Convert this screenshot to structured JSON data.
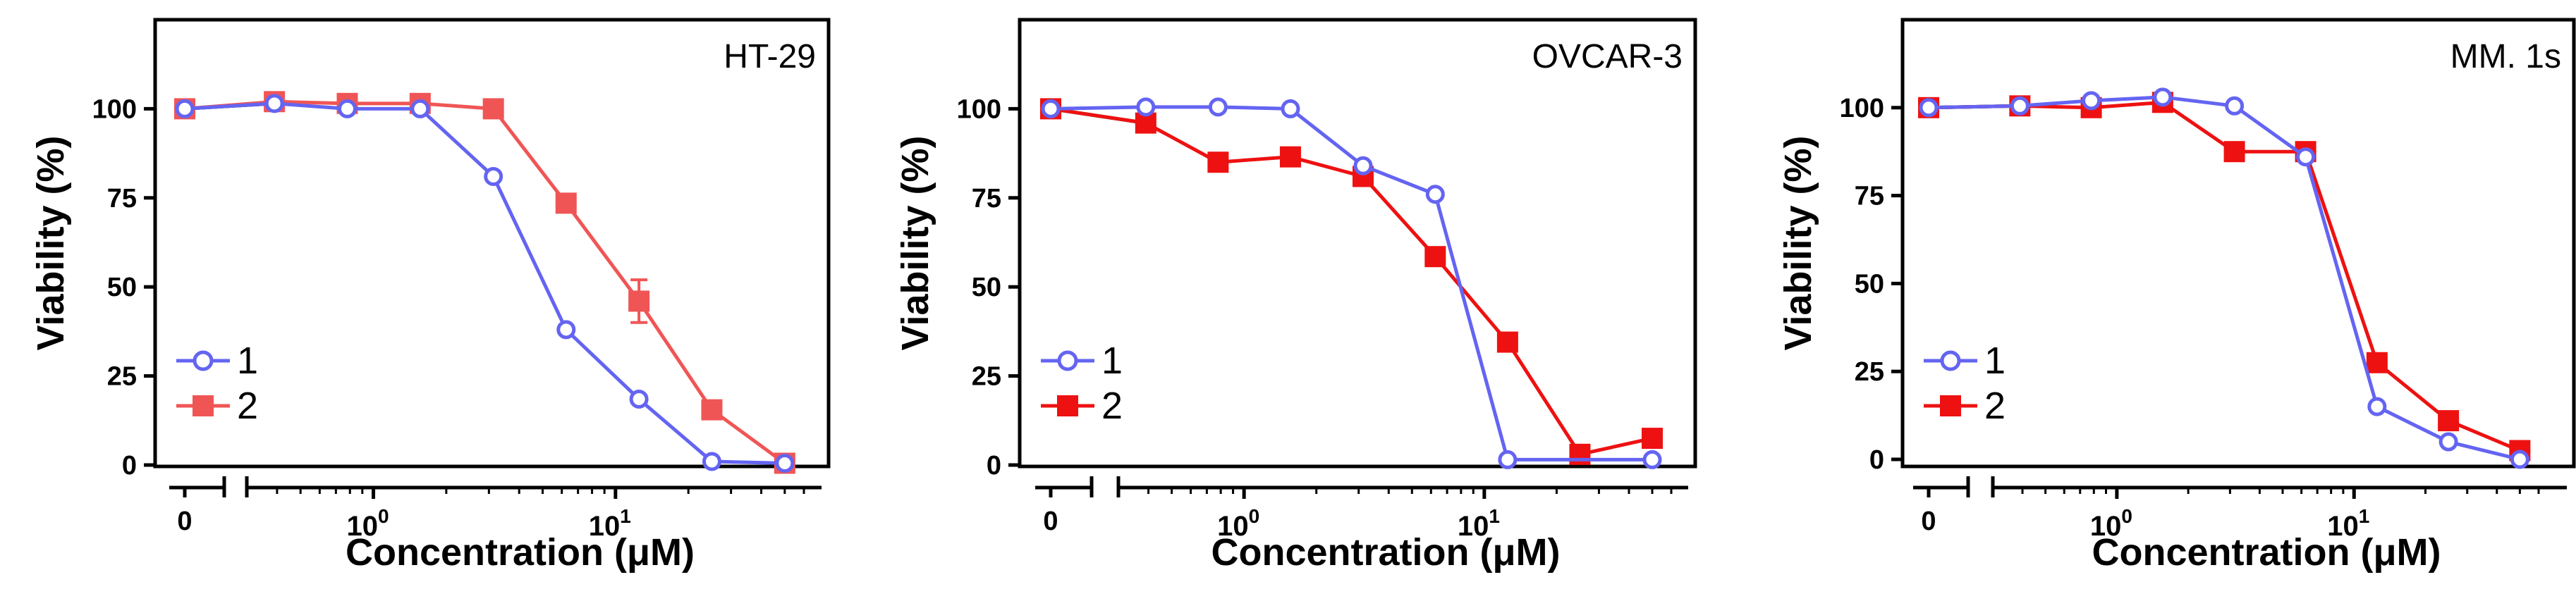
{
  "chart_data": [
    {
      "type": "line",
      "title": "HT-29",
      "xlabel": "Concentration (μM)",
      "ylabel": "Viability (%)",
      "ylim": [
        0,
        125
      ],
      "yticks": [
        0,
        25,
        50,
        75,
        100
      ],
      "xscale": "log",
      "zero_tick": "0",
      "xtick_labels": [
        {
          "value": 1,
          "base": "10",
          "exp": "0"
        },
        {
          "value": 10,
          "base": "10",
          "exp": "1"
        }
      ],
      "legend": {
        "position": "bottom-left",
        "entries": [
          "1",
          "2"
        ]
      },
      "control": {
        "from_x": 0,
        "from_y": 100,
        "to_x": 0.39,
        "to_y": 101.5
      },
      "series": [
        {
          "name": "1",
          "color": "#6464f2",
          "marker": "open-circle",
          "x": [
            0,
            0.39,
            0.78,
            1.56,
            3.13,
            6.25,
            12.5,
            25,
            50
          ],
          "y": [
            100,
            101.5,
            100,
            100,
            81,
            38,
            18.5,
            1,
            0.5
          ]
        },
        {
          "name": "2",
          "color": "#f05555",
          "marker": "filled-square",
          "x": [
            0,
            0.39,
            0.78,
            1.56,
            3.13,
            6.25,
            12.5,
            25,
            50
          ],
          "y": [
            100,
            102,
            101.5,
            101.5,
            100,
            73.5,
            46,
            15.5,
            0.5
          ],
          "err": [
            0,
            0,
            0,
            0,
            0,
            2,
            6,
            0,
            0
          ]
        }
      ]
    },
    {
      "type": "line",
      "title": "OVCAR-3",
      "xlabel": "Concentration (μM)",
      "ylabel": "Viability (%)",
      "ylim": [
        0,
        125
      ],
      "yticks": [
        0,
        25,
        50,
        75,
        100
      ],
      "xscale": "log",
      "zero_tick": "0",
      "xtick_labels": [
        {
          "value": 1,
          "base": "10",
          "exp": "0"
        },
        {
          "value": 10,
          "base": "10",
          "exp": "1"
        }
      ],
      "legend": {
        "position": "bottom-left",
        "entries": [
          "1",
          "2"
        ]
      },
      "control": {
        "from_x": 0,
        "from_y": 100,
        "to_x": 0.39,
        "to_y": 96
      },
      "series": [
        {
          "name": "1",
          "color": "#6464f2",
          "marker": "open-circle",
          "x": [
            0,
            0.39,
            0.78,
            1.56,
            3.13,
            6.25,
            12.5,
            50
          ],
          "y": [
            100,
            100.5,
            100.5,
            100,
            84,
            76,
            1.5,
            1.5
          ]
        },
        {
          "name": "2",
          "color": "#ee1111",
          "marker": "filled-square",
          "x": [
            0,
            0.39,
            0.78,
            1.56,
            3.13,
            6.25,
            12.5,
            25,
            50
          ],
          "y": [
            100,
            96,
            85,
            86.5,
            81,
            58.5,
            34.5,
            3,
            7.5
          ]
        }
      ]
    },
    {
      "type": "line",
      "title": "MM. 1s",
      "xlabel": "Concentration (μM)",
      "ylabel": "Viability (%)",
      "ylim": [
        0,
        125
      ],
      "yticks": [
        0,
        25,
        50,
        75,
        100
      ],
      "xscale": "log",
      "zero_tick": "0",
      "xtick_labels": [
        {
          "value": 1,
          "base": "10",
          "exp": "0"
        },
        {
          "value": 10,
          "base": "10",
          "exp": "1"
        }
      ],
      "legend": {
        "position": "bottom-left",
        "entries": [
          "1",
          "2"
        ]
      },
      "control": {
        "from_x": 0,
        "from_y": 100,
        "to_x": 0.39,
        "to_y": 100.5
      },
      "series": [
        {
          "name": "1",
          "color": "#6464f2",
          "marker": "open-circle",
          "x": [
            0,
            0.39,
            0.78,
            1.56,
            3.13,
            6.25,
            12.5,
            25,
            50
          ],
          "y": [
            100,
            100.5,
            102,
            103,
            100.5,
            86,
            15,
            5,
            0
          ]
        },
        {
          "name": "2",
          "color": "#ee1111",
          "marker": "filled-square",
          "x": [
            0,
            0.39,
            0.78,
            1.56,
            3.13,
            6.25,
            12.5,
            25,
            50
          ],
          "y": [
            100,
            100.5,
            100,
            101.5,
            87.5,
            87.5,
            27.5,
            11,
            2.5
          ]
        }
      ]
    }
  ]
}
